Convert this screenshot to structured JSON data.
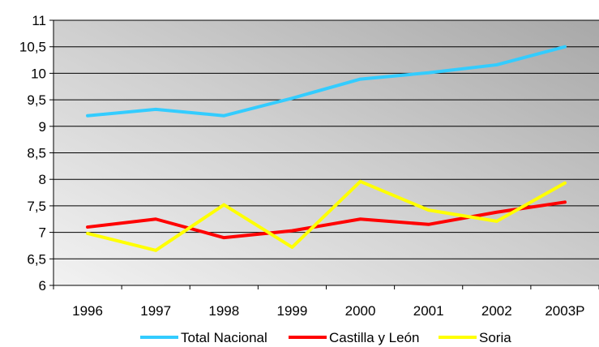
{
  "chart_data": {
    "type": "line",
    "categories": [
      "1996",
      "1997",
      "1998",
      "1999",
      "2000",
      "2001",
      "2002",
      "2003P"
    ],
    "series": [
      {
        "name": "Total Nacional",
        "color": "#33ccff",
        "values": [
          9.2,
          9.32,
          9.2,
          9.53,
          9.89,
          10.01,
          10.16,
          10.5
        ]
      },
      {
        "name": "Castilla y León",
        "color": "#ff0000",
        "values": [
          7.1,
          7.25,
          6.9,
          7.03,
          7.25,
          7.15,
          7.38,
          7.57
        ]
      },
      {
        "name": "Soria",
        "color": "#ffff00",
        "values": [
          6.98,
          6.66,
          7.52,
          6.72,
          7.96,
          7.42,
          7.21,
          7.93
        ]
      }
    ],
    "yticks": [
      "6",
      "6,5",
      "7",
      "7,5",
      "8",
      "8,5",
      "9",
      "9,5",
      "10",
      "10,5",
      "11"
    ],
    "ylim": [
      6,
      11
    ],
    "grid": true,
    "legend_position": "bottom",
    "plot_background": "gradient-grey"
  }
}
